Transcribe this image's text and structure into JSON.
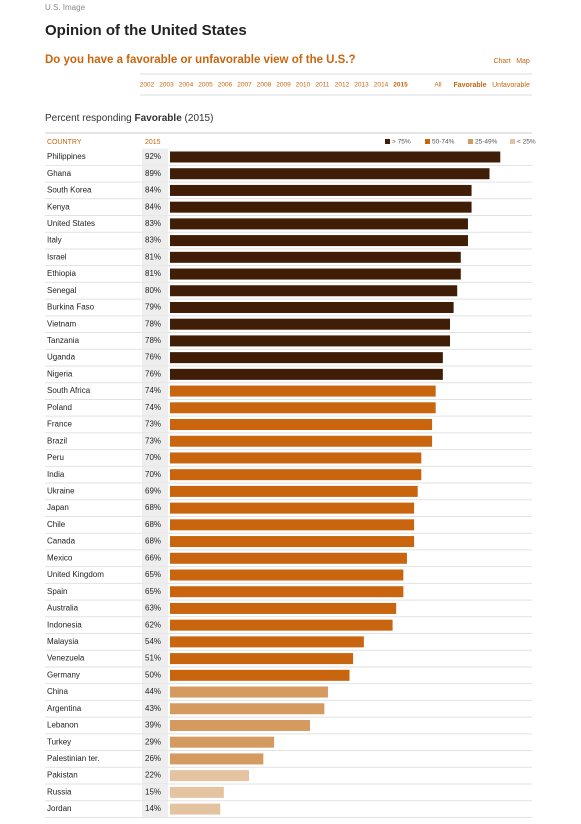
{
  "page": {
    "source": "U.S. Image",
    "title": "Opinion of the United States",
    "question": "Do you have a favorable or unfavorable view of the U.S.?",
    "views": [
      "Chart",
      "Map"
    ],
    "years": [
      "2002",
      "2003",
      "2004",
      "2005",
      "2006",
      "2007",
      "2008",
      "2009",
      "2010",
      "2011",
      "2012",
      "2013",
      "2014",
      "2015",
      "All"
    ],
    "modes": [
      "Favorable",
      "Unfavorable"
    ],
    "subtitle": {
      "prefix": "Percent responding",
      "measure": "Favorable",
      "period": "(2015)"
    }
  },
  "chart_data": {
    "type": "bar",
    "orientation": "horizontal",
    "category_header": "COUNTRY",
    "value_header": "2015",
    "categories": [
      "Philippines",
      "Ghana",
      "South Korea",
      "Kenya",
      "United States",
      "Italy",
      "Israel",
      "Ethiopia",
      "Senegal",
      "Burkina Faso",
      "Vietnam",
      "Tanzania",
      "Uganda",
      "Nigeria",
      "South Africa",
      "Poland",
      "France",
      "Brazil",
      "Peru",
      "India",
      "Ukraine",
      "Japan",
      "Chile",
      "Canada",
      "Mexico",
      "United Kingdom",
      "Spain",
      "Australia",
      "Indonesia",
      "Malaysia",
      "Venezuela",
      "Germany",
      "China",
      "Argentina",
      "Lebanon",
      "Turkey",
      "Palestinian ter.",
      "Pakistan",
      "Russia",
      "Jordan"
    ],
    "values": [
      92,
      89,
      84,
      84,
      83,
      83,
      81,
      81,
      80,
      79,
      78,
      78,
      76,
      76,
      74,
      74,
      73,
      73,
      70,
      70,
      69,
      68,
      68,
      68,
      66,
      65,
      65,
      63,
      62,
      54,
      51,
      50,
      44,
      43,
      39,
      29,
      26,
      22,
      15,
      14
    ],
    "value_labels": [
      "92%",
      "89%",
      "84%",
      "84%",
      "83%",
      "83%",
      "81%",
      "81%",
      "80%",
      "79%",
      "78%",
      "78%",
      "76%",
      "76%",
      "74%",
      "74%",
      "73%",
      "73%",
      "70%",
      "70%",
      "69%",
      "68%",
      "68%",
      "68%",
      "66%",
      "65%",
      "65%",
      "63%",
      "62%",
      "54%",
      "51%",
      "50%",
      "44%",
      "43%",
      "39%",
      "29%",
      "26%",
      "22%",
      "15%",
      "14%"
    ],
    "colors": [
      "#3f1d07",
      "#3f1d07",
      "#3f1d07",
      "#3f1d07",
      "#3f1d07",
      "#3f1d07",
      "#3f1d07",
      "#3f1d07",
      "#3f1d07",
      "#3f1d07",
      "#3f1d07",
      "#3f1d07",
      "#3f1d07",
      "#3f1d07",
      "#c8650e",
      "#c8650e",
      "#c8650e",
      "#c8650e",
      "#c8650e",
      "#c8650e",
      "#c8650e",
      "#c8650e",
      "#c8650e",
      "#c8650e",
      "#c8650e",
      "#c8650e",
      "#c8650e",
      "#c8650e",
      "#c8650e",
      "#c8650e",
      "#c8650e",
      "#c8650e",
      "#d49a60",
      "#d49a60",
      "#d49a60",
      "#d49a60",
      "#d49a60",
      "#e4c3a0",
      "#e4c3a0",
      "#e4c3a0"
    ],
    "legend": [
      {
        "name": "> 75%",
        "color": "#3f1d07"
      },
      {
        "name": "50-74%",
        "color": "#c8650e"
      },
      {
        "name": "25-49%",
        "color": "#d49a60"
      },
      {
        "name": "< 25%",
        "color": "#e4c3a0"
      }
    ],
    "xlim": [
      0,
      100
    ]
  }
}
